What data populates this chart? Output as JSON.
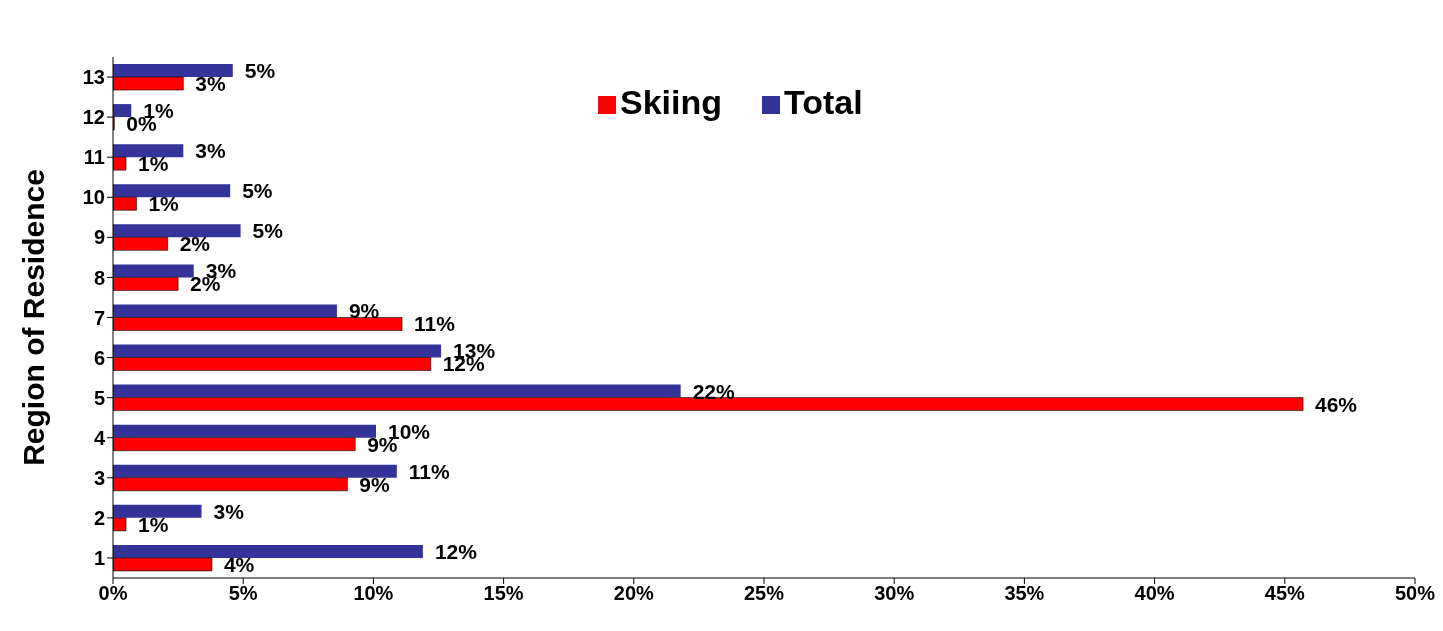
{
  "chart_data": {
    "type": "bar",
    "orientation": "horizontal",
    "ylabel": "Region of Residence",
    "categories": [
      "13",
      "12",
      "11",
      "10",
      "9",
      "8",
      "7",
      "6",
      "5",
      "4",
      "3",
      "2",
      "1"
    ],
    "series": [
      {
        "name": "Total",
        "color": "#333399",
        "values": [
          4.6,
          0.7,
          2.7,
          4.5,
          4.9,
          3.1,
          8.6,
          12.6,
          21.8,
          10.1,
          10.9,
          3.4,
          11.9
        ],
        "value_labels": [
          "5%",
          "1%",
          "3%",
          "5%",
          "5%",
          "3%",
          "9%",
          "13%",
          "22%",
          "10%",
          "11%",
          "3%",
          "12%"
        ]
      },
      {
        "name": "Skiing",
        "color": "#ff0000",
        "values": [
          2.7,
          0.05,
          0.5,
          0.9,
          2.1,
          2.5,
          11.1,
          12.2,
          45.7,
          9.3,
          9.0,
          0.5,
          3.8
        ],
        "value_labels": [
          "3%",
          "0%",
          "1%",
          "1%",
          "2%",
          "2%",
          "11%",
          "12%",
          "46%",
          "9%",
          "9%",
          "1%",
          "4%"
        ]
      }
    ],
    "xlim": [
      0,
      50
    ],
    "xticks": [
      {
        "value": 0,
        "label": "0%"
      },
      {
        "value": 5,
        "label": "5%"
      },
      {
        "value": 10,
        "label": "10%"
      },
      {
        "value": 15,
        "label": "15%"
      },
      {
        "value": 20,
        "label": "20%"
      },
      {
        "value": 25,
        "label": "25%"
      },
      {
        "value": 30,
        "label": "30%"
      },
      {
        "value": 35,
        "label": "35%"
      },
      {
        "value": 40,
        "label": "40%"
      },
      {
        "value": 45,
        "label": "45%"
      },
      {
        "value": 50,
        "label": "50%"
      }
    ],
    "grid": false,
    "legend": "top"
  }
}
